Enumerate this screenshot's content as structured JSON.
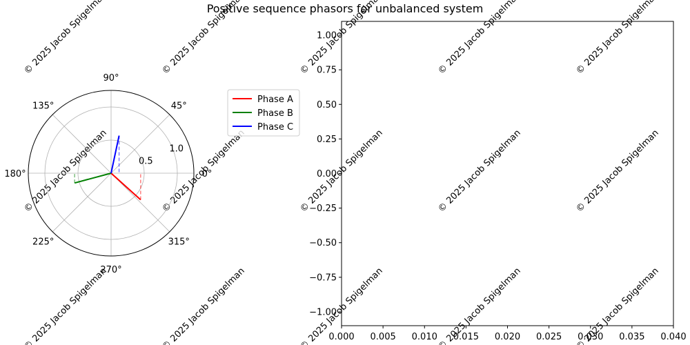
{
  "title": "Positive sequence phasors for unbalanced system",
  "watermark": "© 2025 Jacob Spigelman",
  "colors": {
    "phase_a": "#ff0000",
    "phase_b": "#008000",
    "phase_c": "#0000ff",
    "grid": "#b0b0b0",
    "watermark": "#c8c8c8"
  },
  "chart_data": [
    {
      "type": "polar",
      "angle_tick_labels": [
        "0°",
        "45°",
        "90°",
        "135°",
        "180°",
        "225°",
        "270°",
        "315°"
      ],
      "radial_tick_labels": [
        "0.5",
        "1.0"
      ],
      "rlim": [
        0,
        1.25
      ],
      "grid": true,
      "legend": {
        "placement": "right of polar plot",
        "entries": [
          "Phase A",
          "Phase B",
          "Phase C"
        ]
      },
      "series": [
        {
          "name": "Phase A",
          "magnitude": 0.6,
          "angle_deg": -42,
          "projection": "dashed vertical to real axis"
        },
        {
          "name": "Phase B",
          "magnitude": 0.57,
          "angle_deg": 195,
          "projection": "dashed vertical to real axis"
        },
        {
          "name": "Phase C",
          "magnitude": 0.58,
          "angle_deg": 78,
          "projection": "dashed vertical to real axis"
        }
      ]
    },
    {
      "type": "line",
      "series": [],
      "xlim": [
        0,
        0.04
      ],
      "ylim": [
        -1.1,
        1.1
      ],
      "x_tick_labels": [
        "0.000",
        "0.005",
        "0.010",
        "0.015",
        "0.020",
        "0.025",
        "0.030",
        "0.035",
        "0.040"
      ],
      "y_tick_labels": [
        "1.00",
        "0.75",
        "0.50",
        "0.25",
        "0.00",
        "−0.25",
        "−0.50",
        "−0.75",
        "−1.00"
      ],
      "y_tick_values": [
        1.0,
        0.75,
        0.5,
        0.25,
        0.0,
        -0.25,
        -0.5,
        -0.75,
        -1.0
      ],
      "grid": false
    }
  ]
}
